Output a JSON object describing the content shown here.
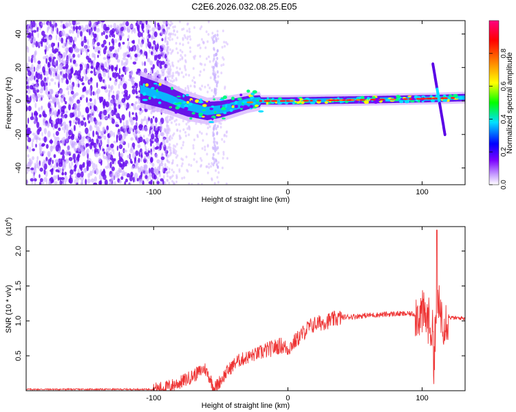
{
  "title": "C2E6.2026.032.08.25.E05",
  "chart_data": [
    {
      "type": "heatmap",
      "name": "spectrogram",
      "xlabel": "Height of straight line (km)",
      "ylabel": "Frequency (Hz)",
      "xlim": [
        -195,
        132
      ],
      "ylim": [
        -50,
        48
      ],
      "x_ticks": [
        -100,
        0,
        100
      ],
      "y_ticks": [
        -40,
        -20,
        0,
        20,
        40
      ],
      "x_tick_labels": [
        "-100",
        "0",
        "100"
      ],
      "y_tick_labels": [
        "-40",
        "-20",
        "0",
        "20",
        "40"
      ],
      "ridge": {
        "x": [
          -110,
          -90,
          -75,
          -60,
          -50,
          -40,
          -30,
          -20,
          0,
          40,
          80,
          110,
          130
        ],
        "y": [
          7,
          2,
          -3,
          -6,
          -5,
          -3,
          -1,
          0,
          0,
          0.5,
          1,
          1.5,
          2
        ]
      },
      "colorbar": {
        "label": "Normalized spectral amplitude",
        "range": [
          0,
          1
        ],
        "ticks": [
          0.0,
          0.2,
          0.4,
          0.6,
          0.8
        ],
        "tick_labels": [
          "0.0",
          "0.2",
          "0.4",
          "0.6",
          "0.8"
        ],
        "colors": [
          "#ffffff",
          "#7a00ff",
          "#0000ff",
          "#00e0ff",
          "#00ff00",
          "#ffff00",
          "#ff8000",
          "#ff0000",
          "#ff0080"
        ]
      }
    },
    {
      "type": "line",
      "name": "snr",
      "xlabel": "Height of straight line (km)",
      "ylabel": "SNR (10 * v/v)",
      "y_multiplier": "(x10",
      "y_multiplier_exp": "4",
      "y_multiplier_close": ")",
      "xlim": [
        -195,
        132
      ],
      "ylim": [
        0,
        2.35
      ],
      "x_ticks": [
        -100,
        0,
        100
      ],
      "y_ticks": [
        0.5,
        1.0,
        1.5,
        2.0
      ],
      "x_tick_labels": [
        "-100",
        "0",
        "100"
      ],
      "y_tick_labels": [
        "0.5",
        "1.0",
        "1.5",
        "2.0"
      ],
      "color": "#ee3333",
      "envelope": {
        "x": [
          -195,
          -100,
          -90,
          -80,
          -70,
          -62,
          -58,
          -55,
          -52,
          -45,
          -38,
          -30,
          -20,
          -10,
          -5,
          0,
          5,
          10,
          15,
          20,
          30,
          40,
          60,
          80,
          90,
          100,
          105,
          108,
          110,
          113,
          116,
          120,
          125,
          132
        ],
        "y": [
          0.02,
          0.02,
          0.05,
          0.12,
          0.22,
          0.32,
          0.18,
          0.03,
          0.1,
          0.28,
          0.42,
          0.48,
          0.55,
          0.62,
          0.65,
          0.6,
          0.7,
          0.8,
          0.9,
          0.95,
          1.0,
          1.05,
          1.08,
          1.1,
          1.1,
          1.1,
          1.0,
          0.8,
          1.0,
          1.2,
          1.0,
          1.05,
          1.04,
          1.04
        ]
      },
      "annotations": [
        {
          "x": 111,
          "y": 2.3,
          "note": "peak"
        }
      ]
    }
  ]
}
